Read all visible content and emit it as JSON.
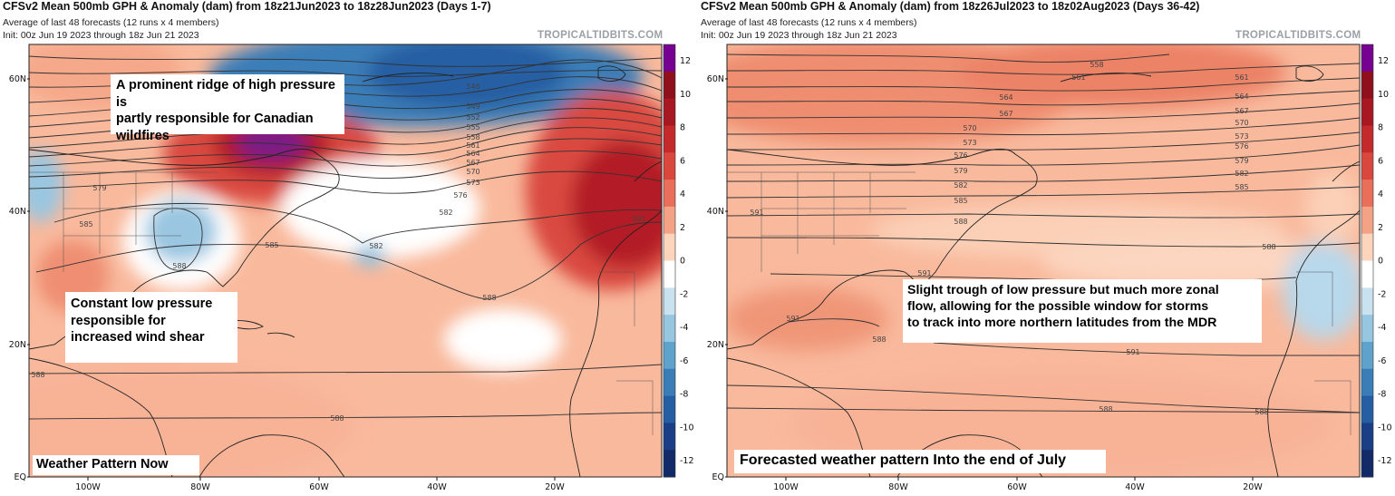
{
  "panels": [
    {
      "title": "CFSv2 Mean 500mb GPH & Anomaly (dam) from 18z21Jun2023 to 18z28Jun2023 (Days 1-7)",
      "subtitle": "Average of last 48 forecasts (12 runs x 4 members)",
      "init": "Init: 00z Jun 19 2023 through 18z Jun 21 2023",
      "credit": "TROPICALTIDBITS.COM",
      "annotations": [
        "A prominent ridge of high pressure is\npartly responsible for Canadian\nwildfires",
        "Constant low pressure\nresponsible for\nincreased wind shear",
        "Weather Pattern Now"
      ],
      "contour_labels": [
        "546",
        "549",
        "552",
        "555",
        "558",
        "561",
        "564",
        "567",
        "570",
        "573",
        "576",
        "579",
        "582",
        "582",
        "585",
        "585",
        "588",
        "588",
        "588",
        "588",
        "591"
      ]
    },
    {
      "title": "CFSv2 Mean 500mb GPH & Anomaly (dam) from 18z26Jul2023 to 18z02Aug2023 (Days 36-42)",
      "subtitle": "Average of last 48 forecasts (12 runs x 4 members)",
      "init": "Init: 00z Jun 19 2023 through 18z Jun 21 2023",
      "credit": "TROPICALTIDBITS.COM",
      "annotations": [
        "Slight trough of low pressure but much more zonal\nflow, allowing for the possible window for storms\nto track into more northern latitudes from the MDR",
        "Forecasted weather pattern Into the end of July"
      ],
      "contour_labels": [
        "558",
        "561",
        "561",
        "564",
        "564",
        "567",
        "567",
        "570",
        "570",
        "573",
        "573",
        "576",
        "576",
        "579",
        "579",
        "582",
        "582",
        "585",
        "585",
        "588",
        "588",
        "588",
        "588",
        "588",
        "591",
        "591",
        "591",
        "591"
      ]
    }
  ],
  "lat_labels": [
    "60N",
    "40N",
    "20N",
    "EQ"
  ],
  "lon_labels": [
    "100W",
    "80W",
    "60W",
    "40W",
    "20W"
  ],
  "colorbar": {
    "ticks": [
      "12",
      "10",
      "8",
      "6",
      "4",
      "2",
      "0",
      "-2",
      "-4",
      "-6",
      "-8",
      "-10",
      "-12"
    ],
    "colors": [
      "#760091",
      "#8f0f1c",
      "#a81822",
      "#c42a2c",
      "#d9473d",
      "#ea6f5b",
      "#f3a285",
      "#fdd5bd",
      "#ffffff",
      "#c9e2ef",
      "#97c6e0",
      "#5fa3cd",
      "#3a7db7",
      "#265ea3",
      "#1b3f86",
      "#122b68"
    ]
  },
  "palette": {
    "base": "#f9b99c",
    "ridge": "#ee8a6e",
    "strong": "#cf3a34",
    "peak": "#8b1d8f",
    "trough": "#4a8bc6",
    "trough_deep": "#2f64a8",
    "neutral": "#ffffff",
    "light_blue": "#b7d7ea"
  }
}
